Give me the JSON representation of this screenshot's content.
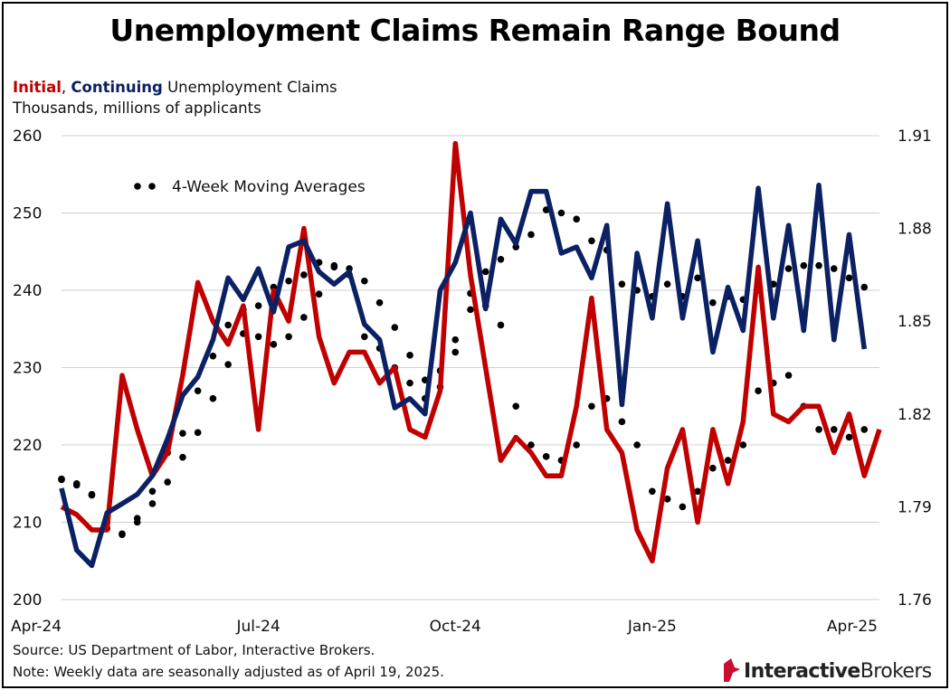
{
  "title": "Unemployment Claims Remain Range Bound",
  "subtitle": {
    "initial": "Initial",
    "sep": ", ",
    "continuing": "Continuing",
    "rest": " Unemployment Claims"
  },
  "units": "Thousands, millions of applicants",
  "source": "Source: US Department of Labor, Interactive Brokers.",
  "note": "Note: Weekly data are seasonally adjusted as of April 19, 2025.",
  "logo": {
    "bold": "Interactive",
    "regular": "Brokers"
  },
  "colors": {
    "initial": "#c00000",
    "continuing": "#0b2163",
    "moving_average": "#000000",
    "grid": "#d0d0d0"
  },
  "chart_data": {
    "type": "line",
    "x_tick_labels": [
      "Apr-24",
      "Jul-24",
      "Oct-24",
      "Jan-25",
      "Apr-25"
    ],
    "x_tick_weeks": [
      0,
      13,
      26,
      39,
      52
    ],
    "y_left": {
      "ticks": [
        "200",
        "210",
        "220",
        "230",
        "240",
        "250",
        "260"
      ],
      "range": [
        200,
        260
      ]
    },
    "y_right": {
      "ticks": [
        "1.76",
        "1.79",
        "1.82",
        "1.85",
        "1.88",
        "1.91"
      ],
      "range": [
        1.76,
        1.91
      ]
    },
    "legend": "4-Week Moving Averages",
    "grid": "horizontal",
    "series": [
      {
        "name": "Initial",
        "axis": "left",
        "style": "solid",
        "values": [
          212,
          211,
          209,
          209,
          229,
          222,
          216,
          219,
          229,
          241,
          236,
          233,
          238,
          222,
          240,
          236,
          248,
          234,
          228,
          232,
          232,
          228,
          230,
          222,
          221,
          227,
          259,
          242,
          230,
          218,
          221,
          219,
          216,
          216,
          225,
          239,
          222,
          219,
          209,
          205,
          217,
          222,
          210,
          222,
          215,
          223,
          243,
          224,
          223,
          225,
          225,
          219,
          224,
          216,
          222
        ]
      },
      {
        "name": "Continuing",
        "axis": "right",
        "style": "solid",
        "values": [
          1.796,
          1.776,
          1.771,
          1.788,
          1.791,
          1.794,
          1.8,
          1.812,
          1.826,
          1.832,
          1.844,
          1.864,
          1.857,
          1.867,
          1.853,
          1.874,
          1.876,
          1.866,
          1.862,
          1.866,
          1.849,
          1.844,
          1.822,
          1.825,
          1.82,
          1.86,
          1.869,
          1.885,
          1.854,
          1.883,
          1.875,
          1.892,
          1.892,
          1.872,
          1.874,
          1.864,
          1.881,
          1.823,
          1.872,
          1.851,
          1.888,
          1.851,
          1.876,
          1.84,
          1.861,
          1.847,
          1.893,
          1.851,
          1.881,
          1.847,
          1.894,
          1.844,
          1.878,
          1.841
        ]
      },
      {
        "name": "Initial 4-week moving average",
        "axis": "left",
        "style": "dotted",
        "values": [
          215.5,
          215,
          213.5,
          210,
          208.5,
          210.5,
          214,
          219,
          221.5,
          227,
          231.5,
          235.5,
          237.5,
          234,
          233,
          234,
          236.5,
          239.5,
          243,
          242,
          234,
          232.5,
          230,
          228,
          226,
          227.5,
          232,
          237.5,
          238,
          235.5,
          225,
          220,
          218.5,
          218,
          220,
          225,
          226,
          223,
          220,
          214,
          213,
          212,
          214,
          217,
          218,
          220,
          227,
          228,
          229,
          225,
          222,
          222,
          221,
          222
        ]
      },
      {
        "name": "Continuing 4-week moving average",
        "axis": "right",
        "style": "dotted",
        "values": [
          1.799,
          1.797,
          1.794,
          1.783,
          1.781,
          1.785,
          1.791,
          1.798,
          1.806,
          1.814,
          1.825,
          1.836,
          1.846,
          1.855,
          1.861,
          1.863,
          1.865,
          1.869,
          1.868,
          1.867,
          1.863,
          1.856,
          1.848,
          1.839,
          1.831,
          1.834,
          1.844,
          1.859,
          1.866,
          1.87,
          1.874,
          1.878,
          1.886,
          1.885,
          1.883,
          1.876,
          1.873,
          1.862,
          1.86,
          1.858,
          1.862,
          1.858,
          1.864,
          1.856,
          1.858,
          1.857,
          1.86,
          1.862,
          1.867,
          1.868,
          1.868,
          1.867,
          1.864,
          1.861
        ]
      }
    ]
  }
}
